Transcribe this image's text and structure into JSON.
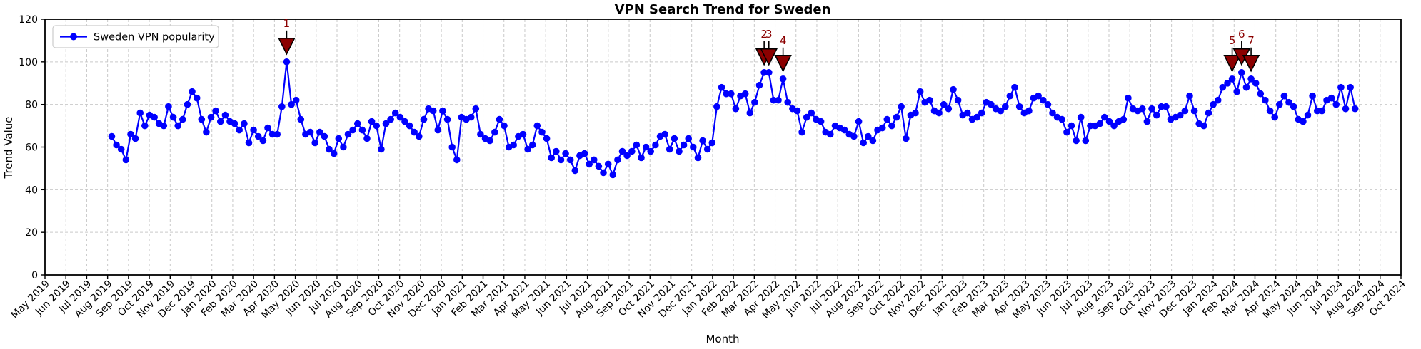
{
  "chart_data": {
    "type": "line",
    "title": "VPN Search Trend for Sweden",
    "xlabel": "Month",
    "ylabel": "Trend Value",
    "grid": true,
    "legend": {
      "label": "Sweden VPN popularity",
      "position": "upper left"
    },
    "ylim": [
      0,
      120
    ],
    "yticks": [
      0,
      20,
      40,
      60,
      80,
      100,
      120
    ],
    "x_tick_labels": [
      "May 2019",
      "Jun 2019",
      "Jul 2019",
      "Aug 2019",
      "Sep 2019",
      "Oct 2019",
      "Nov 2019",
      "Dec 2019",
      "Jan 2020",
      "Feb 2020",
      "Mar 2020",
      "Apr 2020",
      "May 2020",
      "Jun 2020",
      "Jul 2020",
      "Aug 2020",
      "Sep 2020",
      "Oct 2020",
      "Nov 2020",
      "Dec 2020",
      "Jan 2021",
      "Feb 2021",
      "Mar 2021",
      "Apr 2021",
      "May 2021",
      "Jun 2021",
      "Jul 2021",
      "Aug 2021",
      "Sep 2021",
      "Oct 2021",
      "Nov 2021",
      "Dec 2021",
      "Jan 2022",
      "Feb 2022",
      "Mar 2022",
      "Apr 2022",
      "May 2022",
      "Jun 2022",
      "Jul 2022",
      "Aug 2022",
      "Sep 2022",
      "Oct 2022",
      "Nov 2022",
      "Dec 2022",
      "Jan 2023",
      "Feb 2023",
      "Mar 2023",
      "Apr 2023",
      "May 2023",
      "Jun 2023",
      "Jul 2023",
      "Aug 2023",
      "Sep 2023",
      "Oct 2023",
      "Nov 2023",
      "Dec 2023",
      "Jan 2024",
      "Feb 2024",
      "Mar 2024",
      "Apr 2024",
      "May 2024",
      "Jun 2024",
      "Jul 2024",
      "Aug 2024",
      "Sep 2024",
      "Oct 2024"
    ],
    "data_x_range_months": {
      "start_offset_from_first_tick": 3.2,
      "end_offset_from_first_tick": 62.8
    },
    "series": [
      {
        "name": "Sweden VPN popularity",
        "color": "#0000FF",
        "marker": "circle",
        "frequency": "weekly",
        "values": [
          65,
          61,
          59,
          54,
          66,
          64,
          76,
          70,
          75,
          74,
          71,
          70,
          79,
          74,
          70,
          73,
          80,
          86,
          83,
          73,
          67,
          74,
          77,
          72,
          75,
          72,
          71,
          68,
          71,
          62,
          68,
          65,
          63,
          69,
          66,
          66,
          79,
          100,
          80,
          82,
          73,
          66,
          67,
          62,
          67,
          65,
          59,
          57,
          64,
          60,
          66,
          68,
          71,
          68,
          64,
          72,
          70,
          59,
          71,
          73,
          76,
          74,
          72,
          70,
          67,
          65,
          73,
          78,
          77,
          68,
          77,
          73,
          60,
          54,
          74,
          73,
          74,
          78,
          66,
          64,
          63,
          67,
          73,
          70,
          60,
          61,
          65,
          66,
          59,
          61,
          70,
          67,
          64,
          55,
          58,
          54,
          57,
          54,
          49,
          56,
          57,
          52,
          54,
          51,
          48,
          52,
          47,
          54,
          58,
          56,
          58,
          61,
          55,
          60,
          58,
          61,
          65,
          66,
          59,
          64,
          58,
          61,
          64,
          60,
          55,
          63,
          59,
          62,
          79,
          88,
          85,
          85,
          78,
          84,
          85,
          76,
          81,
          89,
          95,
          95,
          82,
          82,
          92,
          81,
          78,
          77,
          67,
          74,
          76,
          73,
          72,
          67,
          66,
          70,
          69,
          68,
          66,
          65,
          72,
          62,
          65,
          63,
          68,
          69,
          73,
          70,
          74,
          79,
          64,
          75,
          76,
          86,
          81,
          82,
          77,
          76,
          80,
          78,
          87,
          82,
          75,
          76,
          73,
          74,
          76,
          81,
          80,
          78,
          77,
          79,
          84,
          88,
          79,
          76,
          77,
          83,
          84,
          82,
          80,
          76,
          74,
          73,
          67,
          70,
          63,
          74,
          63,
          70,
          70,
          71,
          74,
          72,
          70,
          72,
          73,
          83,
          78,
          77,
          78,
          72,
          78,
          75,
          79,
          79,
          73,
          74,
          75,
          77,
          84,
          77,
          71,
          70,
          76,
          80,
          82,
          88,
          90,
          92,
          86,
          95,
          88,
          92,
          90,
          85,
          82,
          77,
          74,
          80,
          84,
          81,
          79,
          73,
          72,
          75,
          84,
          77,
          77,
          82,
          83,
          80,
          88,
          78,
          88,
          78
        ]
      }
    ],
    "annotations": [
      {
        "label": "1",
        "index": 37,
        "value": 100
      },
      {
        "label": "2",
        "index": 138,
        "value": 95
      },
      {
        "label": "3",
        "index": 139,
        "value": 95
      },
      {
        "label": "4",
        "index": 142,
        "value": 92
      },
      {
        "label": "5",
        "index": 237,
        "value": 92
      },
      {
        "label": "6",
        "index": 239,
        "value": 95
      },
      {
        "label": "7",
        "index": 241,
        "value": 92
      }
    ],
    "annotation_marker": "triangle-down",
    "annotation_color": "#8B0000",
    "grid_color": "#c9c9c9",
    "axis_color": "#000000"
  }
}
